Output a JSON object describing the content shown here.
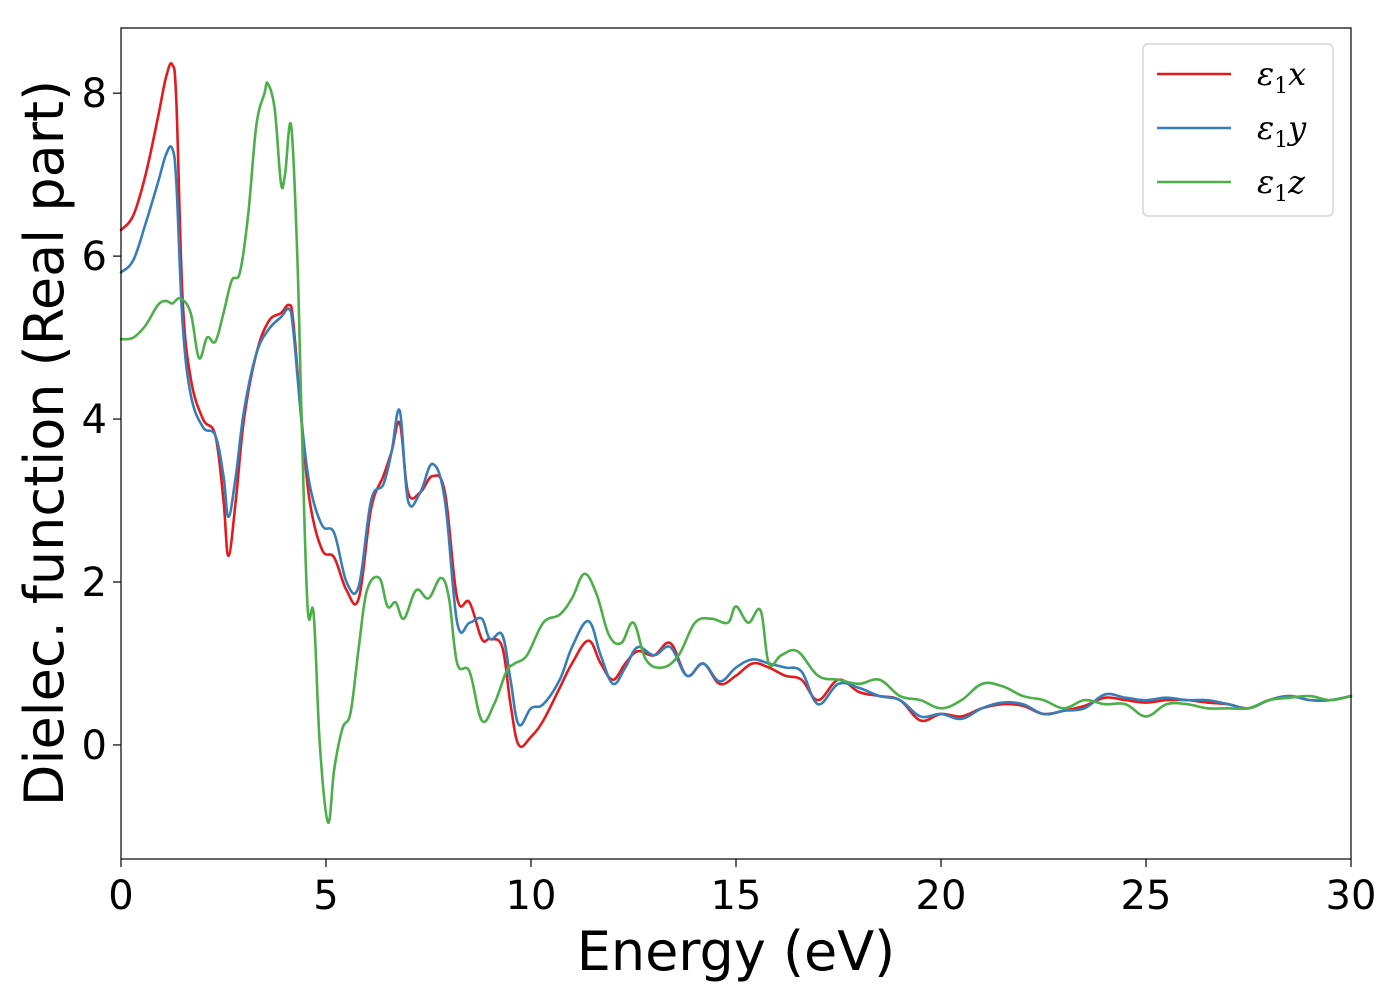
{
  "chart_data": {
    "type": "line",
    "title": "",
    "xlabel": "Energy (eV)",
    "ylabel": "Dielec. function (Real part)",
    "xlim": [
      0,
      30
    ],
    "ylim": [
      -1.4,
      8.8
    ],
    "xticks": [
      0,
      5,
      10,
      15,
      20,
      25,
      30
    ],
    "xtick_labels": [
      "0",
      "5",
      "10",
      "15",
      "20",
      "25",
      "30"
    ],
    "yticks": [
      0,
      2,
      4,
      6,
      8
    ],
    "ytick_labels": [
      "0",
      "2",
      "4",
      "6",
      "8"
    ],
    "grid": false,
    "legend_position": "top-right",
    "series": [
      {
        "name": "ε1x",
        "legend_main": "ε",
        "legend_sub": "1",
        "legend_suffix": "x",
        "color": "#e41a1c",
        "x": [
          0,
          0.3,
          0.6,
          0.9,
          1.1,
          1.25,
          1.35,
          1.5,
          1.7,
          2.0,
          2.3,
          2.5,
          2.62,
          2.8,
          3.0,
          3.3,
          3.6,
          3.9,
          4.1,
          4.2,
          4.4,
          4.6,
          4.9,
          5.2,
          5.5,
          5.8,
          6.1,
          6.4,
          6.6,
          6.8,
          7.0,
          7.3,
          7.6,
          7.9,
          8.2,
          8.5,
          8.8,
          9.0,
          9.3,
          9.5,
          9.7,
          10.0,
          10.3,
          10.7,
          11.0,
          11.4,
          11.7,
          12.0,
          12.3,
          12.6,
          13.0,
          13.4,
          13.8,
          14.2,
          14.6,
          15.0,
          15.4,
          15.8,
          16.2,
          16.6,
          17.0,
          17.5,
          18.0,
          18.5,
          19.0,
          19.5,
          20.0,
          20.5,
          21.0,
          21.5,
          22.0,
          22.5,
          23.0,
          23.5,
          24.0,
          24.5,
          25.0,
          25.5,
          26.0,
          26.5,
          27.0,
          27.5,
          28.0,
          28.5,
          29.0,
          29.5,
          30.0
        ],
        "y": [
          6.32,
          6.5,
          7.0,
          7.7,
          8.2,
          8.35,
          7.9,
          5.5,
          4.5,
          4.0,
          3.8,
          3.0,
          2.32,
          3.0,
          4.0,
          4.8,
          5.2,
          5.3,
          5.4,
          5.2,
          4.0,
          3.0,
          2.4,
          2.3,
          1.9,
          1.8,
          2.9,
          3.3,
          3.6,
          3.95,
          3.1,
          3.1,
          3.3,
          3.1,
          1.8,
          1.75,
          1.3,
          1.3,
          1.2,
          0.5,
          0.0,
          0.1,
          0.3,
          0.7,
          1.0,
          1.28,
          1.0,
          0.8,
          1.0,
          1.15,
          1.1,
          1.25,
          0.85,
          1.0,
          0.75,
          0.85,
          1.0,
          0.95,
          0.85,
          0.8,
          0.55,
          0.8,
          0.65,
          0.6,
          0.55,
          0.3,
          0.38,
          0.35,
          0.45,
          0.5,
          0.48,
          0.38,
          0.42,
          0.48,
          0.58,
          0.55,
          0.52,
          0.55,
          0.55,
          0.52,
          0.5,
          0.45,
          0.55,
          0.6,
          0.55,
          0.55,
          0.6
        ]
      },
      {
        "name": "ε1y",
        "legend_main": "ε",
        "legend_sub": "1",
        "legend_suffix": "y",
        "color": "#377eb8",
        "x": [
          0,
          0.3,
          0.6,
          0.9,
          1.1,
          1.25,
          1.35,
          1.5,
          1.7,
          2.0,
          2.3,
          2.5,
          2.62,
          2.8,
          3.0,
          3.3,
          3.6,
          3.9,
          4.1,
          4.2,
          4.4,
          4.6,
          4.9,
          5.2,
          5.5,
          5.8,
          6.1,
          6.4,
          6.6,
          6.8,
          7.0,
          7.3,
          7.6,
          7.9,
          8.2,
          8.5,
          8.8,
          9.0,
          9.3,
          9.5,
          9.7,
          10.0,
          10.3,
          10.7,
          11.0,
          11.4,
          11.7,
          12.0,
          12.3,
          12.6,
          13.0,
          13.4,
          13.8,
          14.2,
          14.6,
          15.0,
          15.4,
          15.8,
          16.2,
          16.6,
          17.0,
          17.5,
          18.0,
          18.5,
          19.0,
          19.5,
          20.0,
          20.5,
          21.0,
          21.5,
          22.0,
          22.5,
          23.0,
          23.5,
          24.0,
          24.5,
          25.0,
          25.5,
          26.0,
          26.5,
          27.0,
          27.5,
          28.0,
          28.5,
          29.0,
          29.5,
          30.0
        ],
        "y": [
          5.8,
          5.95,
          6.4,
          6.9,
          7.25,
          7.32,
          6.9,
          5.2,
          4.3,
          3.9,
          3.8,
          3.3,
          2.8,
          3.3,
          4.1,
          4.8,
          5.1,
          5.25,
          5.35,
          5.1,
          4.0,
          3.2,
          2.7,
          2.6,
          2.0,
          1.95,
          3.0,
          3.2,
          3.6,
          4.1,
          3.0,
          3.1,
          3.45,
          3.0,
          1.5,
          1.5,
          1.55,
          1.3,
          1.35,
          0.8,
          0.25,
          0.45,
          0.5,
          0.8,
          1.2,
          1.52,
          1.1,
          0.75,
          0.95,
          1.2,
          1.1,
          1.2,
          0.85,
          1.0,
          0.78,
          0.95,
          1.05,
          1.0,
          0.95,
          0.9,
          0.5,
          0.75,
          0.7,
          0.6,
          0.55,
          0.35,
          0.38,
          0.32,
          0.45,
          0.52,
          0.5,
          0.38,
          0.42,
          0.45,
          0.62,
          0.58,
          0.55,
          0.58,
          0.55,
          0.55,
          0.5,
          0.45,
          0.55,
          0.6,
          0.55,
          0.55,
          0.6
        ]
      },
      {
        "name": "ε1z",
        "legend_main": "ε",
        "legend_sub": "1",
        "legend_suffix": "z",
        "color": "#4daf4a",
        "x": [
          0,
          0.3,
          0.6,
          0.9,
          1.1,
          1.25,
          1.45,
          1.7,
          1.9,
          2.1,
          2.3,
          2.5,
          2.7,
          2.9,
          3.1,
          3.3,
          3.5,
          3.58,
          3.75,
          3.9,
          4.0,
          4.15,
          4.3,
          4.4,
          4.55,
          4.7,
          4.85,
          5.05,
          5.2,
          5.4,
          5.6,
          5.8,
          6.0,
          6.3,
          6.5,
          6.7,
          6.9,
          7.2,
          7.5,
          7.8,
          8.0,
          8.2,
          8.5,
          8.8,
          9.1,
          9.4,
          9.6,
          9.9,
          10.3,
          10.7,
          11.0,
          11.3,
          11.6,
          11.9,
          12.2,
          12.5,
          12.8,
          13.2,
          13.6,
          14.0,
          14.4,
          14.8,
          15.0,
          15.3,
          15.6,
          15.8,
          16.1,
          16.5,
          17.0,
          17.5,
          18.0,
          18.5,
          19.0,
          19.5,
          20.0,
          20.5,
          21.0,
          21.5,
          22.0,
          22.5,
          23.0,
          23.5,
          24.0,
          24.5,
          25.0,
          25.5,
          26.0,
          26.5,
          27.0,
          27.5,
          28.0,
          28.5,
          29.0,
          29.5,
          30.0
        ],
        "y": [
          4.98,
          5.0,
          5.15,
          5.4,
          5.45,
          5.42,
          5.48,
          5.3,
          4.75,
          5.0,
          4.95,
          5.3,
          5.7,
          5.8,
          6.5,
          7.6,
          8.0,
          8.12,
          7.8,
          6.9,
          7.0,
          7.6,
          6.0,
          4.1,
          1.7,
          1.6,
          0.0,
          -0.95,
          -0.3,
          0.2,
          0.4,
          1.2,
          1.9,
          2.05,
          1.7,
          1.75,
          1.55,
          1.9,
          1.8,
          2.05,
          1.8,
          1.0,
          0.9,
          0.3,
          0.5,
          0.9,
          1.0,
          1.1,
          1.5,
          1.6,
          1.8,
          2.1,
          1.85,
          1.35,
          1.25,
          1.5,
          1.05,
          0.95,
          1.1,
          1.5,
          1.55,
          1.5,
          1.7,
          1.5,
          1.65,
          1.0,
          1.1,
          1.15,
          0.85,
          0.8,
          0.75,
          0.8,
          0.6,
          0.55,
          0.45,
          0.55,
          0.75,
          0.72,
          0.6,
          0.55,
          0.45,
          0.55,
          0.5,
          0.5,
          0.35,
          0.5,
          0.5,
          0.45,
          0.45,
          0.45,
          0.55,
          0.58,
          0.6,
          0.55,
          0.6
        ]
      }
    ]
  }
}
